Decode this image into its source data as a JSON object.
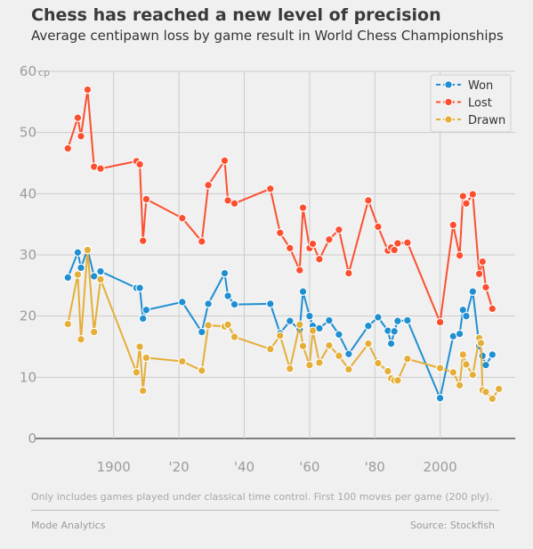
{
  "chart_data": {
    "type": "line",
    "title": "Chess has reached a new level of precision",
    "subtitle": "Average centipawn loss by game result in World Chess Championships",
    "xlabel": "",
    "ylabel": "",
    "y_unit": "cp",
    "xlim": [
      1881,
      2023
    ],
    "ylim": [
      0,
      60
    ],
    "x_ticks": [
      1900,
      1920,
      1940,
      1960,
      1980,
      2000
    ],
    "x_tick_labels": [
      "1900",
      "'20",
      "'40",
      "'60",
      "'80",
      "2000"
    ],
    "y_ticks": [
      0,
      10,
      20,
      30,
      40,
      50,
      60
    ],
    "y_tick_labels": [
      "0",
      "10",
      "20",
      "30",
      "40",
      "50",
      "60"
    ],
    "grid": true,
    "legend_position": "top-right",
    "series": [
      {
        "name": "Won",
        "color": "#1f8fd1",
        "x": [
          1886,
          1889,
          1890,
          1892,
          1894,
          1896,
          1907,
          1908,
          1909,
          1910,
          1921,
          1927,
          1929,
          1934,
          1935,
          1937,
          1948,
          1951,
          1954,
          1957,
          1958,
          1960,
          1961,
          1963,
          1966,
          1969,
          1972,
          1978,
          1981,
          1984,
          1985,
          1986,
          1987,
          1990,
          2000,
          2004,
          2006,
          2007,
          2008,
          2010,
          2012,
          2013,
          2014,
          2016
        ],
        "y": [
          26.3,
          30.4,
          27.9,
          30.9,
          26.5,
          27.3,
          24.6,
          24.6,
          19.6,
          21.0,
          22.3,
          17.4,
          22.0,
          27.0,
          23.3,
          21.9,
          22.0,
          17.2,
          19.2,
          17.8,
          24.0,
          20.0,
          18.4,
          18.0,
          19.3,
          17.0,
          13.8,
          18.4,
          19.8,
          17.6,
          15.5,
          17.5,
          19.2,
          19.3,
          6.6,
          16.7,
          17.1,
          21.0,
          20.0,
          24.0,
          15.1,
          13.5,
          12.0,
          13.7
        ]
      },
      {
        "name": "Lost",
        "color": "#fc4f30",
        "x": [
          1886,
          1889,
          1890,
          1892,
          1894,
          1896,
          1907,
          1908,
          1909,
          1910,
          1921,
          1927,
          1929,
          1934,
          1935,
          1937,
          1948,
          1951,
          1954,
          1957,
          1958,
          1960,
          1961,
          1963,
          1966,
          1969,
          1972,
          1978,
          1981,
          1984,
          1985,
          1986,
          1987,
          1990,
          2000,
          2004,
          2006,
          2007,
          2008,
          2010,
          2012,
          2013,
          2014,
          2016
        ],
        "y": [
          47.4,
          52.4,
          49.4,
          57.0,
          44.4,
          44.1,
          45.3,
          44.8,
          32.3,
          39.1,
          36.0,
          32.2,
          41.4,
          45.4,
          38.9,
          38.4,
          40.8,
          33.6,
          31.1,
          27.5,
          37.7,
          31.1,
          31.8,
          29.3,
          32.5,
          34.1,
          27.0,
          38.9,
          34.6,
          30.7,
          31.2,
          30.8,
          31.9,
          32.0,
          19.0,
          34.9,
          29.9,
          39.6,
          38.4,
          39.9,
          26.9,
          28.9,
          24.7,
          21.2
        ]
      },
      {
        "name": "Drawn",
        "color": "#e5ae38",
        "x": [
          1886,
          1889,
          1890,
          1892,
          1894,
          1896,
          1907,
          1908,
          1909,
          1910,
          1921,
          1927,
          1929,
          1934,
          1935,
          1937,
          1948,
          1951,
          1954,
          1957,
          1958,
          1960,
          1961,
          1963,
          1966,
          1969,
          1972,
          1978,
          1981,
          1984,
          1985,
          1986,
          1987,
          1990,
          2000,
          2004,
          2006,
          2007,
          2008,
          2010,
          2012,
          2012.5,
          2013,
          2014,
          2016,
          2018
        ],
        "y": [
          18.7,
          26.8,
          16.2,
          30.8,
          17.4,
          26.0,
          10.8,
          15.0,
          7.8,
          13.2,
          12.6,
          11.1,
          18.5,
          18.3,
          18.6,
          16.6,
          14.6,
          16.8,
          11.4,
          18.6,
          15.1,
          12.0,
          17.6,
          12.4,
          15.2,
          13.5,
          11.3,
          15.5,
          12.3,
          11.0,
          9.8,
          9.5,
          9.5,
          13.0,
          11.5,
          10.8,
          8.7,
          13.7,
          12.1,
          10.4,
          16.4,
          15.6,
          7.9,
          7.6,
          6.5,
          8.1
        ]
      }
    ]
  },
  "footnote": "Only includes games played under classical time control. First 100 moves per game (200 ply).",
  "footer": {
    "left": "Mode Analytics",
    "right": "Source: Stockfish"
  }
}
